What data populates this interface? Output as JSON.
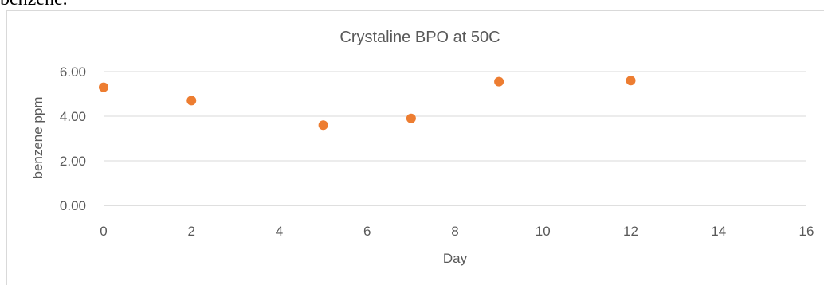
{
  "page": {
    "prefix_text": "benzene."
  },
  "chart_data": {
    "type": "scatter",
    "title": "Crystaline BPO at 50C",
    "xlabel": "Day",
    "ylabel": "benzene ppm",
    "xlim": [
      0,
      16
    ],
    "ylim": [
      0,
      6
    ],
    "x_ticks": [
      "0",
      "2",
      "4",
      "6",
      "8",
      "10",
      "12",
      "14",
      "16"
    ],
    "y_ticks": [
      "0.00",
      "2.00",
      "4.00",
      "6.00"
    ],
    "grid": "horizontal",
    "legend": "none",
    "marker_color": "#ed7d31",
    "points": [
      {
        "x": 0,
        "y": 5.3
      },
      {
        "x": 2,
        "y": 4.7
      },
      {
        "x": 5,
        "y": 3.6
      },
      {
        "x": 7,
        "y": 3.9
      },
      {
        "x": 9,
        "y": 5.55
      },
      {
        "x": 12,
        "y": 5.6
      }
    ]
  }
}
